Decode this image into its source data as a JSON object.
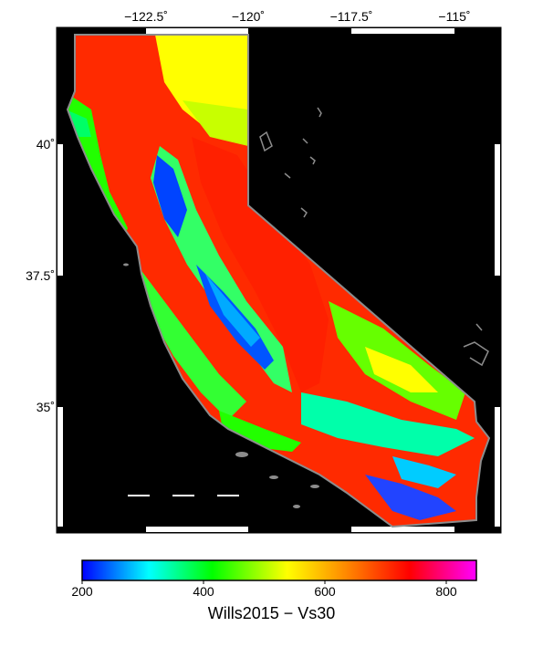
{
  "map": {
    "longitude_ticks": [
      "−122.5˚",
      "−120˚",
      "−117.5˚",
      "−115˚"
    ],
    "latitude_ticks": [
      "40˚",
      "37.5˚",
      "35˚"
    ],
    "background_color": "#000000",
    "outline_color": "#8c8c8c"
  },
  "colorbar": {
    "title": "Wills2015 − Vs30",
    "ticks": [
      "200",
      "400",
      "600",
      "800"
    ],
    "range": [
      200,
      850
    ],
    "colors": [
      "#0000ff",
      "#00ffff",
      "#00ff00",
      "#ffff00",
      "#ff8000",
      "#ff0000",
      "#ff00ff"
    ]
  }
}
